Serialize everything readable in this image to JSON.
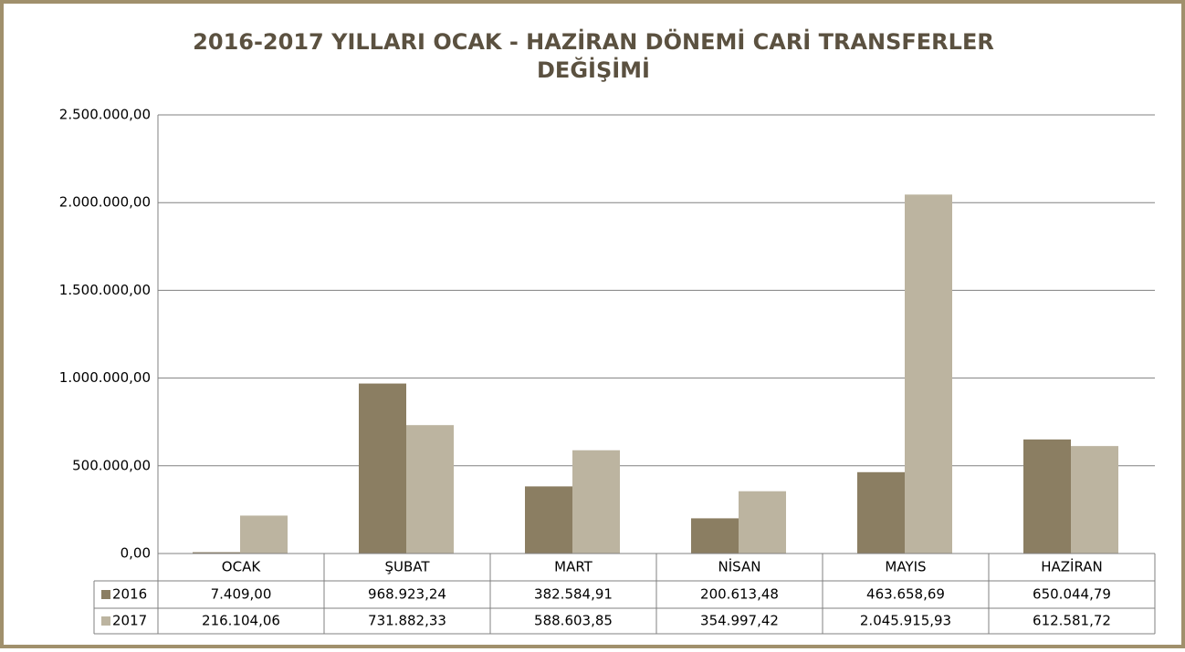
{
  "chart_data": {
    "type": "bar",
    "title": [
      "2016-2017 YILLARI OCAK - HAZİRAN DÖNEMİ CARİ TRANSFERLER",
      "DEĞİŞİMİ"
    ],
    "categories": [
      "OCAK",
      "ŞUBAT",
      "MART",
      "NİSAN",
      "MAYIS",
      "HAZİRAN"
    ],
    "series": [
      {
        "name": "2016",
        "color": "#8b7e62",
        "values": [
          7409,
          968923.24,
          382584.91,
          200613.48,
          463658.69,
          650044.79
        ],
        "value_labels": [
          "7.409,00",
          "968.923,24",
          "382.584,91",
          "200.613,48",
          "463.658,69",
          "650.044,79"
        ]
      },
      {
        "name": "2017",
        "color": "#bcb4a0",
        "values": [
          216104.06,
          731882.33,
          588603.85,
          354997.42,
          2045915.93,
          612581.72
        ],
        "value_labels": [
          "216.104,06",
          "731.882,33",
          "588.603,85",
          "354.997,42",
          "2.045.915,93",
          "612.581,72"
        ]
      }
    ],
    "ylim": [
      0,
      2500000
    ],
    "yticks": [
      {
        "value": 0,
        "label": "0,00"
      },
      {
        "value": 500000,
        "label": "500.000,00"
      },
      {
        "value": 1000000,
        "label": "1.000.000,00"
      },
      {
        "value": 1500000,
        "label": "1.500.000,00"
      },
      {
        "value": 2000000,
        "label": "2.000.000,00"
      },
      {
        "value": 2500000,
        "label": "2.500.000,00"
      }
    ],
    "grid": true
  }
}
